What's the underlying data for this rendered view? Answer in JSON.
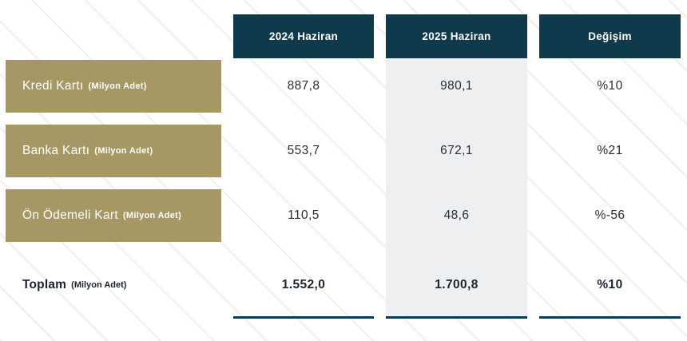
{
  "colors": {
    "header_bg": "#0e3a4b",
    "row_label_bg": "#a69864",
    "highlight_column_bg": "#edeff1",
    "underline": "#0d3c52",
    "header_text": "#ffffff",
    "value_text": "#272e36"
  },
  "chart_data": {
    "type": "table",
    "columns": [
      "2024 Haziran",
      "2025 Haziran",
      "Değişim"
    ],
    "unit_note": "(Milyon Adet)",
    "rows": [
      {
        "label": "Kredi Kartı",
        "unit": "(Milyon Adet)",
        "values": [
          "887,8",
          "980,1",
          "%10"
        ]
      },
      {
        "label": "Banka Kartı",
        "unit": "(Milyon Adet)",
        "values": [
          "553,7",
          "672,1",
          "%21"
        ]
      },
      {
        "label": "Ön Ödemeli Kart",
        "unit": "(Milyon Adet)",
        "values": [
          "110,5",
          "48,6",
          "%-56"
        ]
      }
    ],
    "total": {
      "label": "Toplam",
      "unit": "(Milyon Adet)",
      "values": [
        "1.552,0",
        "1.700,8",
        "%10"
      ]
    },
    "layout_hints": {
      "highlighted_column": "2025 Haziran",
      "row_numeric_values": {
        "kredi_karti": [
          887.8,
          980.1
        ],
        "banka_karti": [
          553.7,
          672.1
        ],
        "on_odemeli_kart": [
          110.5,
          48.6
        ],
        "toplam": [
          1552.0,
          1700.8
        ]
      },
      "change_percent": [
        10,
        21,
        -56,
        10
      ]
    }
  }
}
